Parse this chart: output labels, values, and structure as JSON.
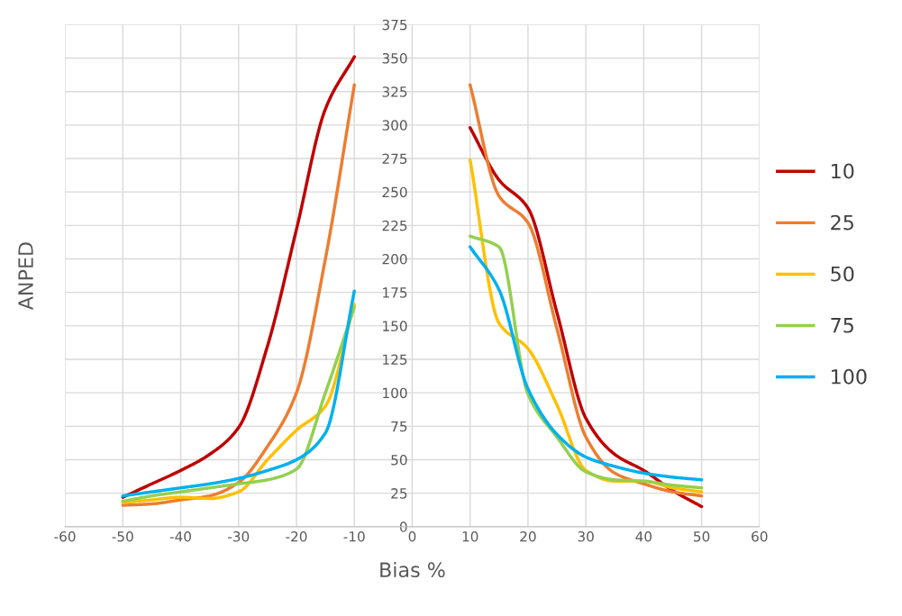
{
  "chart_data": {
    "type": "line",
    "xlabel": "Bias %",
    "ylabel": "ANPED",
    "x": [
      -50,
      -45,
      -40,
      -35,
      -30,
      -25,
      -20,
      -15,
      -10,
      0,
      10,
      15,
      20,
      25,
      30,
      35,
      40,
      45,
      50
    ],
    "series": [
      {
        "name": "10",
        "color": "#c00000",
        "values": [
          22,
          32,
          42,
          54,
          74,
          135,
          222,
          312,
          351,
          null,
          298,
          259,
          238,
          160,
          81,
          54,
          42,
          27,
          15
        ]
      },
      {
        "name": "25",
        "color": "#ed7d31",
        "values": [
          16,
          17,
          20,
          23,
          33,
          60,
          100,
          200,
          330,
          null,
          330,
          247,
          227,
          148,
          67,
          40,
          32,
          26,
          23
        ]
      },
      {
        "name": "50",
        "color": "#ffc000",
        "values": [
          18,
          20,
          22,
          21,
          26,
          50,
          72,
          90,
          166,
          null,
          274,
          152,
          133,
          91,
          42,
          34,
          34,
          29,
          26
        ]
      },
      {
        "name": "75",
        "color": "#92d050",
        "values": [
          19,
          23,
          26,
          29,
          32,
          35,
          43,
          100,
          164,
          null,
          217,
          209,
          99,
          67,
          41,
          35,
          34,
          31,
          29
        ]
      },
      {
        "name": "100",
        "color": "#00b0f0",
        "values": [
          23,
          26,
          29,
          32,
          36,
          42,
          50,
          70,
          176,
          null,
          209,
          177,
          103,
          69,
          52,
          45,
          40,
          37,
          35
        ]
      }
    ],
    "xlim": [
      -60,
      60
    ],
    "xticks": [
      -60,
      -50,
      -40,
      -30,
      -20,
      -10,
      0,
      10,
      20,
      30,
      40,
      50,
      60
    ],
    "ylim": [
      0,
      375
    ],
    "yticks": [
      0,
      25,
      50,
      75,
      100,
      125,
      150,
      175,
      200,
      225,
      250,
      275,
      300,
      325,
      350,
      375
    ],
    "grid": true,
    "legend": "right",
    "marker": "none",
    "line_style": "solid"
  }
}
